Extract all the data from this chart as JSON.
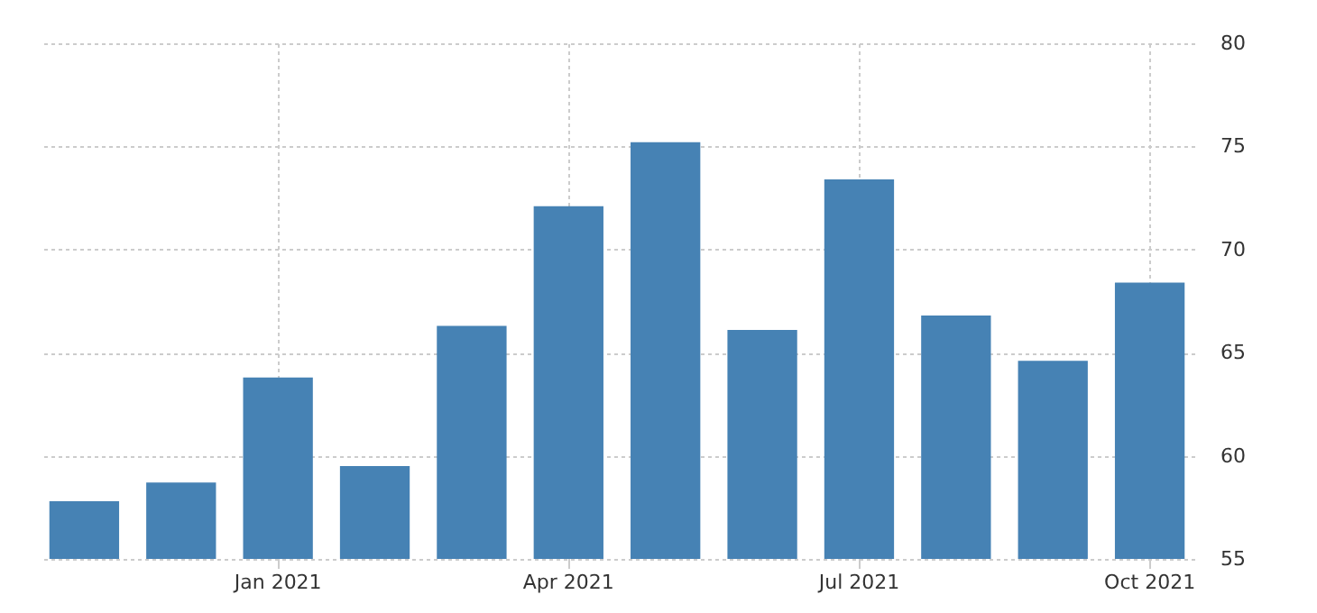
{
  "chart_data": {
    "type": "bar",
    "categories": [
      null,
      null,
      "Jan 2021",
      null,
      null,
      "Apr 2021",
      null,
      null,
      "Jul 2021",
      null,
      null,
      "Oct 2021"
    ],
    "values": [
      57.8,
      58.7,
      63.8,
      59.5,
      66.3,
      72.1,
      75.2,
      66.1,
      73.4,
      66.8,
      64.6,
      68.4
    ],
    "color": "#4682b4",
    "ylim": [
      55,
      80
    ],
    "yticks": [
      55,
      60,
      65,
      70,
      75,
      80
    ],
    "grid": true
  }
}
